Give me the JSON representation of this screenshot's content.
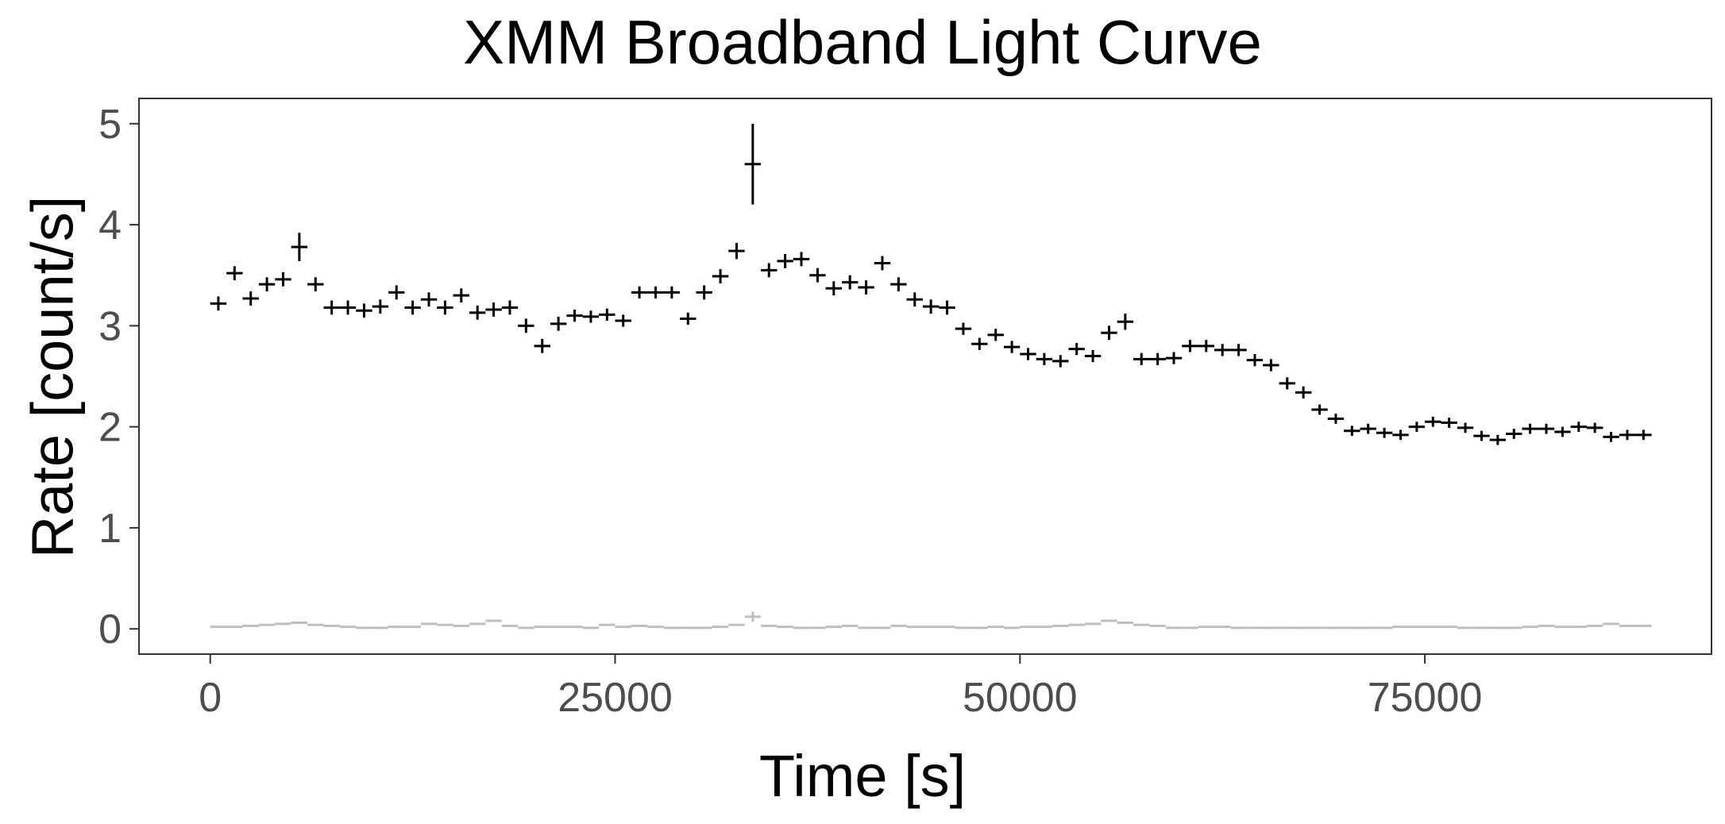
{
  "chart_data": {
    "type": "scatter",
    "title": "XMM Broadband Light Curve",
    "xlabel": "Time [s]",
    "ylabel": "Rate [count/s]",
    "xlim": [
      -4400,
      92700
    ],
    "ylim": [
      -0.25,
      5.25
    ],
    "xticks": [
      0,
      25000,
      50000,
      75000
    ],
    "xtick_labels": [
      "0",
      "25000",
      "50000",
      "75000"
    ],
    "yticks": [
      0,
      1,
      2,
      3,
      4,
      5
    ],
    "ytick_labels": [
      "0",
      "1",
      "2",
      "3",
      "4",
      "5"
    ],
    "grid": false,
    "series": [
      {
        "color": "#000000",
        "bin_width_s": 1000,
        "x": [
          500,
          1500,
          2500,
          3500,
          4500,
          5500,
          6500,
          7500,
          8500,
          9500,
          10500,
          11500,
          12500,
          13500,
          14500,
          15500,
          16500,
          17500,
          18500,
          19500,
          20500,
          21500,
          22500,
          23500,
          24500,
          25500,
          26500,
          27500,
          28500,
          29500,
          30500,
          31500,
          32500,
          33500,
          34500,
          35500,
          36500,
          37500,
          38500,
          39500,
          40500,
          41500,
          42500,
          43500,
          44500,
          45500,
          46500,
          47500,
          48500,
          49500,
          50500,
          51500,
          52500,
          53500,
          54500,
          55500,
          56500,
          57500,
          58500,
          59500,
          60500,
          61500,
          62500,
          63500,
          64500,
          65500,
          66500,
          67500,
          68500,
          69500,
          70500,
          71500,
          72500,
          73500,
          74500,
          75500,
          76500,
          77500,
          78500,
          79500,
          80500,
          81500,
          82500,
          83500,
          84500,
          85500,
          86500,
          87500,
          88500
        ],
        "y": [
          3.22,
          3.52,
          3.27,
          3.41,
          3.46,
          3.78,
          3.41,
          3.18,
          3.18,
          3.15,
          3.19,
          3.33,
          3.18,
          3.26,
          3.18,
          3.3,
          3.13,
          3.16,
          3.18,
          3.0,
          2.8,
          3.02,
          3.1,
          3.09,
          3.11,
          3.05,
          3.33,
          3.33,
          3.33,
          3.07,
          3.33,
          3.49,
          3.74,
          4.6,
          3.55,
          3.64,
          3.66,
          3.5,
          3.37,
          3.43,
          3.38,
          3.62,
          3.41,
          3.26,
          3.19,
          3.18,
          2.97,
          2.82,
          2.91,
          2.79,
          2.72,
          2.67,
          2.65,
          2.77,
          2.7,
          2.93,
          3.04,
          2.67,
          2.67,
          2.68,
          2.8,
          2.8,
          2.76,
          2.76,
          2.66,
          2.61,
          2.43,
          2.34,
          2.17,
          2.08,
          1.96,
          1.98,
          1.94,
          1.92,
          2.0,
          2.05,
          2.04,
          1.99,
          1.91,
          1.87,
          1.93,
          1.98,
          1.98,
          1.95,
          2.0,
          1.99,
          1.9,
          1.92,
          1.92
        ],
        "yerr": [
          0.07,
          0.07,
          0.07,
          0.07,
          0.07,
          0.14,
          0.07,
          0.07,
          0.07,
          0.07,
          0.07,
          0.07,
          0.07,
          0.07,
          0.07,
          0.07,
          0.07,
          0.07,
          0.07,
          0.07,
          0.07,
          0.07,
          0.06,
          0.06,
          0.06,
          0.06,
          0.06,
          0.06,
          0.06,
          0.06,
          0.07,
          0.07,
          0.08,
          0.4,
          0.07,
          0.07,
          0.07,
          0.07,
          0.07,
          0.07,
          0.07,
          0.07,
          0.07,
          0.07,
          0.07,
          0.07,
          0.06,
          0.06,
          0.06,
          0.06,
          0.06,
          0.06,
          0.06,
          0.06,
          0.06,
          0.07,
          0.08,
          0.06,
          0.06,
          0.06,
          0.06,
          0.06,
          0.06,
          0.06,
          0.06,
          0.06,
          0.06,
          0.06,
          0.05,
          0.05,
          0.05,
          0.05,
          0.05,
          0.05,
          0.05,
          0.05,
          0.05,
          0.05,
          0.05,
          0.05,
          0.05,
          0.05,
          0.05,
          0.05,
          0.05,
          0.05,
          0.05,
          0.05,
          0.05
        ]
      },
      {
        "color": "#bebebe",
        "bin_width_s": 1000,
        "x": [
          500,
          1500,
          2500,
          3500,
          4500,
          5500,
          6500,
          7500,
          8500,
          9500,
          10500,
          11500,
          12500,
          13500,
          14500,
          15500,
          16500,
          17500,
          18500,
          19500,
          20500,
          21500,
          22500,
          23500,
          24500,
          25500,
          26500,
          27500,
          28500,
          29500,
          30500,
          31500,
          32500,
          33500,
          34500,
          35500,
          36500,
          37500,
          38500,
          39500,
          40500,
          41500,
          42500,
          43500,
          44500,
          45500,
          46500,
          47500,
          48500,
          49500,
          50500,
          51500,
          52500,
          53500,
          54500,
          55500,
          56500,
          57500,
          58500,
          59500,
          60500,
          61500,
          62500,
          63500,
          64500,
          65500,
          66500,
          67500,
          68500,
          69500,
          70500,
          71500,
          72500,
          73500,
          74500,
          75500,
          76500,
          77500,
          78500,
          79500,
          80500,
          81500,
          82500,
          83500,
          84500,
          85500,
          86500,
          87500,
          88500
        ],
        "y": [
          0.02,
          0.02,
          0.03,
          0.04,
          0.05,
          0.06,
          0.04,
          0.03,
          0.02,
          0.01,
          0.01,
          0.02,
          0.02,
          0.05,
          0.04,
          0.03,
          0.05,
          0.08,
          0.03,
          0.01,
          0.02,
          0.02,
          0.02,
          0.01,
          0.04,
          0.02,
          0.03,
          0.02,
          0.01,
          0.01,
          0.01,
          0.02,
          0.04,
          0.12,
          0.03,
          0.02,
          0.01,
          0.01,
          0.02,
          0.03,
          0.01,
          0.01,
          0.03,
          0.02,
          0.02,
          0.02,
          0.01,
          0.01,
          0.02,
          0.01,
          0.02,
          0.02,
          0.03,
          0.04,
          0.05,
          0.08,
          0.06,
          0.04,
          0.03,
          0.01,
          0.01,
          0.02,
          0.02,
          0.01,
          0.01,
          0.01,
          0.01,
          0.01,
          0.01,
          0.01,
          0.01,
          0.01,
          0.01,
          0.02,
          0.02,
          0.02,
          0.02,
          0.01,
          0.01,
          0.01,
          0.01,
          0.02,
          0.03,
          0.02,
          0.02,
          0.03,
          0.05,
          0.03,
          0.03
        ],
        "yerr": [
          0.005,
          0.005,
          0.005,
          0.005,
          0.005,
          0.005,
          0.005,
          0.005,
          0.005,
          0.005,
          0.005,
          0.005,
          0.005,
          0.005,
          0.005,
          0.005,
          0.005,
          0.005,
          0.005,
          0.005,
          0.005,
          0.005,
          0.005,
          0.005,
          0.005,
          0.005,
          0.005,
          0.005,
          0.005,
          0.005,
          0.005,
          0.005,
          0.005,
          0.05,
          0.005,
          0.005,
          0.005,
          0.005,
          0.005,
          0.005,
          0.005,
          0.005,
          0.005,
          0.005,
          0.005,
          0.005,
          0.005,
          0.005,
          0.005,
          0.005,
          0.005,
          0.005,
          0.005,
          0.005,
          0.005,
          0.005,
          0.005,
          0.005,
          0.005,
          0.005,
          0.005,
          0.005,
          0.005,
          0.005,
          0.005,
          0.005,
          0.005,
          0.005,
          0.005,
          0.005,
          0.005,
          0.005,
          0.005,
          0.005,
          0.005,
          0.005,
          0.005,
          0.005,
          0.005,
          0.005,
          0.005,
          0.005,
          0.005,
          0.005,
          0.005,
          0.005,
          0.005,
          0.005,
          0.005
        ]
      }
    ]
  }
}
